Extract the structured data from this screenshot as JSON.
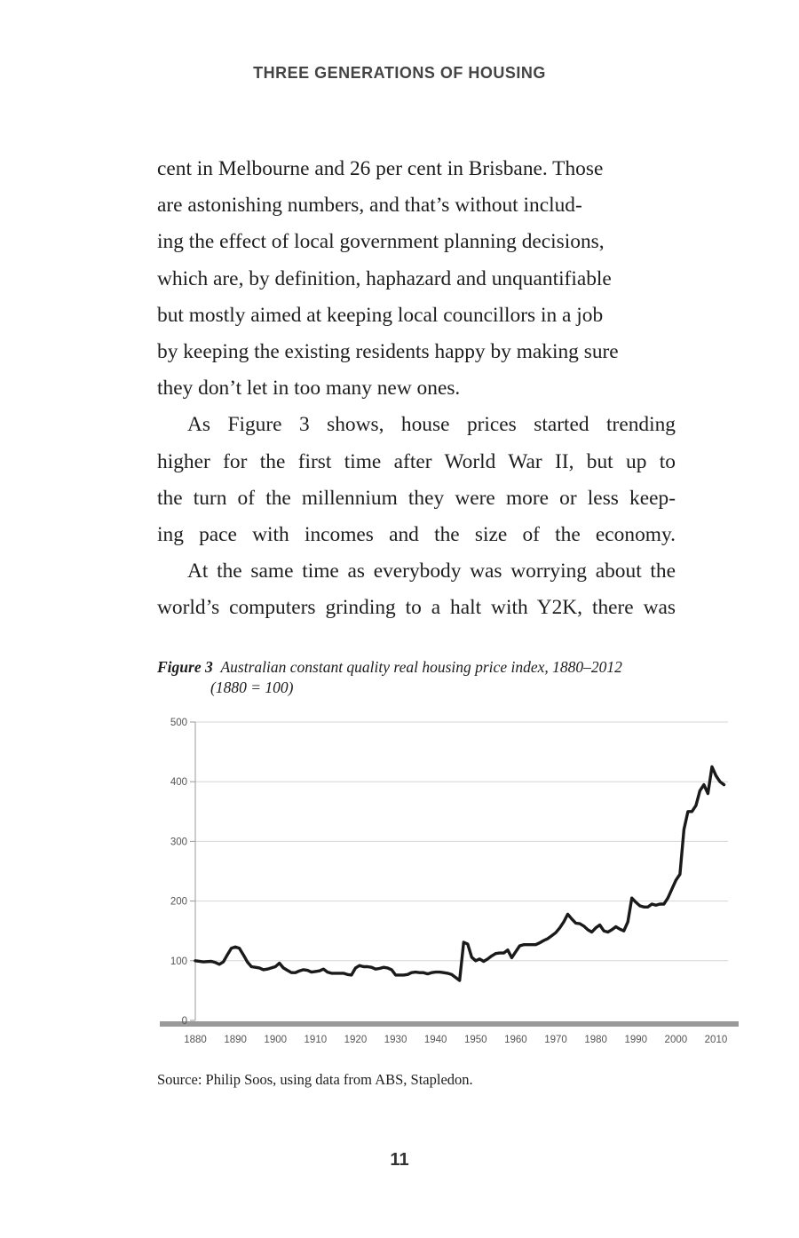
{
  "running_head": "THREE GENERATIONS OF HOUSING",
  "paragraphs": [
    {
      "lines": [
        "cent in Melbourne and 26 per cent in Brisbane. Those",
        "are astonishing numbers, and that’s without includ-",
        "ing the effect of local government planning decisions,",
        "which are, by definition, haphazard and unquantifiable",
        "but mostly aimed at keeping local councillors in a job",
        "by keeping the existing residents happy by making sure",
        "they don’t let in too many new ones."
      ]
    },
    {
      "lines": [
        "As Figure 3 shows, house prices started trending",
        "higher for the first time after World War II, but up to",
        "the turn of the millennium they were more or less keep-",
        "ing pace with incomes and the size of the economy."
      ]
    },
    {
      "lines": [
        "At the same time as everybody was worrying about the",
        "world’s computers grinding to a halt with Y2K, there was"
      ]
    }
  ],
  "figure": {
    "label": "Figure 3",
    "caption_line1": "Australian constant quality real housing price index, 1880–2012",
    "caption_line2": "(1880 = 100)",
    "source": "Source: Philip Soos, using data from ABS, Stapledon."
  },
  "chart_data": {
    "type": "line",
    "title": "Australian constant quality real housing price index, 1880–2012 (1880 = 100)",
    "xlabel": "",
    "ylabel": "",
    "xlim": [
      1880,
      2013
    ],
    "ylim": [
      0,
      500
    ],
    "yticks": [
      0,
      100,
      200,
      300,
      400,
      500
    ],
    "xticks": [
      1880,
      1890,
      1900,
      1910,
      1920,
      1930,
      1940,
      1950,
      1960,
      1970,
      1980,
      1990,
      2000,
      2010
    ],
    "grid": true,
    "series": [
      {
        "name": "Real housing price index",
        "x": [
          1880,
          1882,
          1884,
          1885,
          1886,
          1887,
          1888,
          1889,
          1890,
          1891,
          1892,
          1893,
          1894,
          1895,
          1896,
          1897,
          1898,
          1899,
          1900,
          1901,
          1902,
          1903,
          1904,
          1905,
          1906,
          1907,
          1908,
          1909,
          1910,
          1911,
          1912,
          1913,
          1914,
          1915,
          1916,
          1917,
          1918,
          1919,
          1920,
          1921,
          1922,
          1923,
          1924,
          1925,
          1926,
          1927,
          1928,
          1929,
          1930,
          1931,
          1932,
          1933,
          1934,
          1935,
          1936,
          1937,
          1938,
          1939,
          1940,
          1941,
          1942,
          1943,
          1944,
          1945,
          1946,
          1947,
          1948,
          1949,
          1950,
          1951,
          1952,
          1953,
          1954,
          1955,
          1956,
          1957,
          1958,
          1959,
          1960,
          1961,
          1962,
          1963,
          1964,
          1965,
          1966,
          1967,
          1968,
          1969,
          1970,
          1971,
          1972,
          1973,
          1974,
          1975,
          1976,
          1977,
          1978,
          1979,
          1980,
          1981,
          1982,
          1983,
          1984,
          1985,
          1986,
          1987,
          1988,
          1989,
          1990,
          1991,
          1992,
          1993,
          1994,
          1995,
          1996,
          1997,
          1998,
          1999,
          2000,
          2001,
          2002,
          2003,
          2004,
          2005,
          2006,
          2007,
          2008,
          2009,
          2010,
          2011,
          2012
        ],
        "values": [
          100,
          98,
          99,
          97,
          94,
          98,
          110,
          121,
          123,
          121,
          110,
          98,
          90,
          89,
          88,
          85,
          86,
          88,
          90,
          96,
          88,
          84,
          80,
          80,
          83,
          85,
          84,
          81,
          82,
          83,
          86,
          81,
          79,
          79,
          79,
          79,
          77,
          76,
          88,
          92,
          90,
          90,
          89,
          86,
          87,
          89,
          88,
          85,
          76,
          76,
          76,
          77,
          80,
          81,
          80,
          80,
          78,
          80,
          81,
          81,
          80,
          79,
          77,
          72,
          67,
          131,
          128,
          106,
          100,
          103,
          99,
          103,
          108,
          112,
          113,
          113,
          118,
          105,
          115,
          125,
          127,
          127,
          127,
          127,
          130,
          134,
          137,
          142,
          147,
          155,
          165,
          178,
          170,
          163,
          162,
          158,
          152,
          148,
          155,
          160,
          150,
          148,
          152,
          157,
          153,
          150,
          165,
          205,
          198,
          192,
          190,
          190,
          195,
          193,
          195,
          195,
          205,
          220,
          235,
          245,
          320,
          350,
          350,
          360,
          385,
          395,
          380,
          425,
          410,
          400,
          395
        ]
      }
    ]
  }
}
